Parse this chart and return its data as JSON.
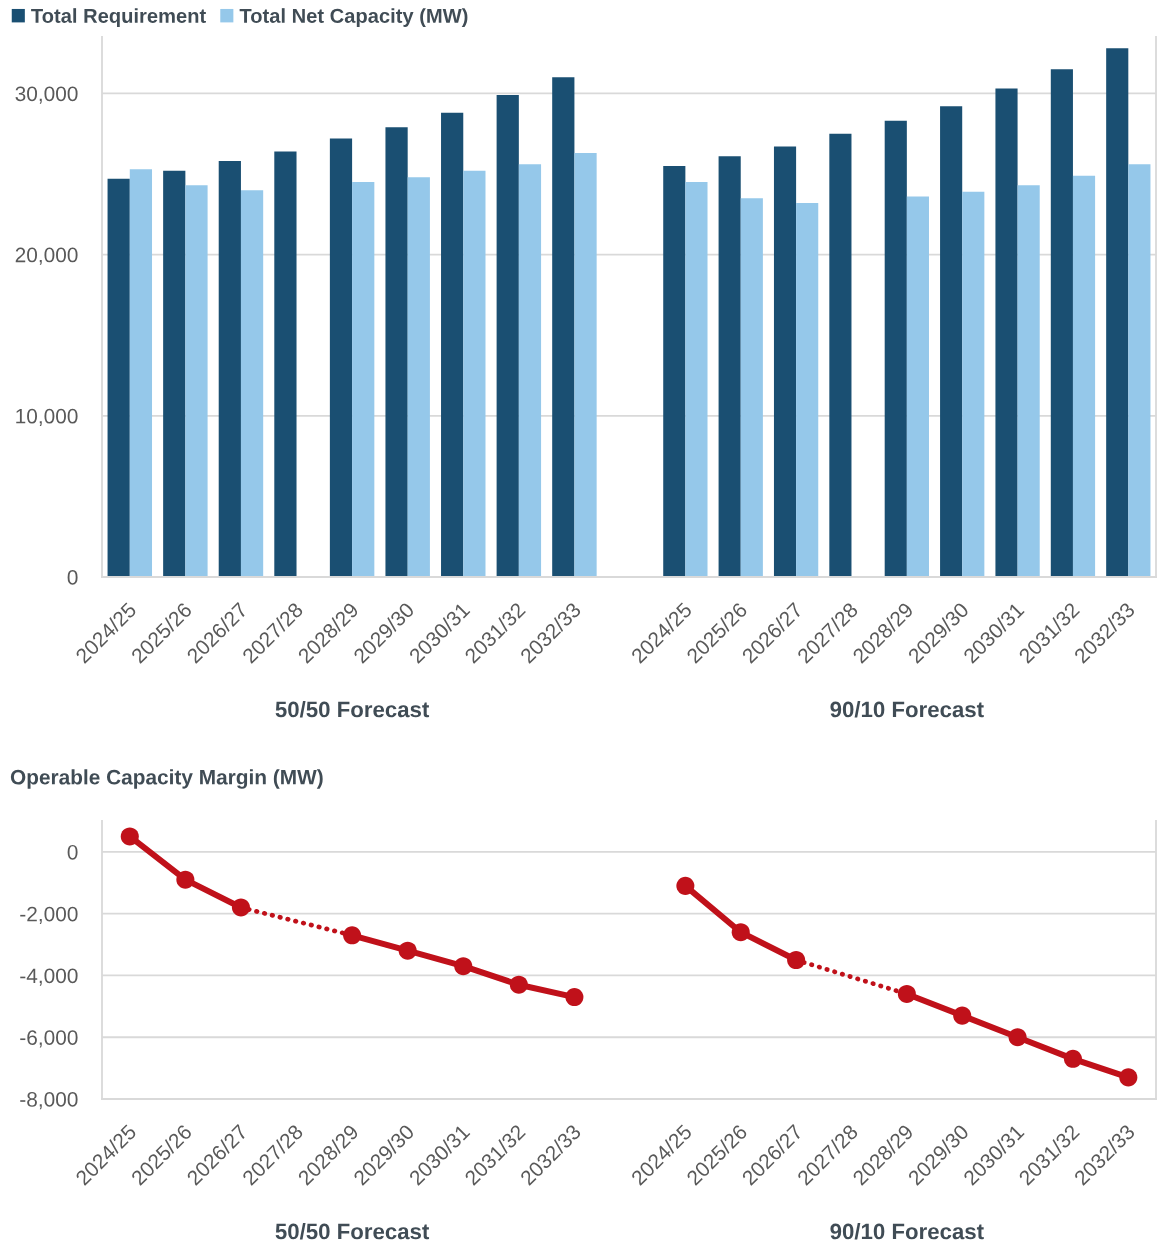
{
  "chart_data": [
    {
      "type": "bar",
      "categories": [
        "2024/25",
        "2025/26",
        "2026/27",
        "2027/28",
        "2028/29",
        "2029/30",
        "2030/31",
        "2031/32",
        "2032/33"
      ],
      "series": [
        {
          "name": "Total Requirement",
          "color": "#1a4f72",
          "values": [
            24700,
            25200,
            25800,
            26400,
            27200,
            27900,
            28800,
            29900,
            31000
          ]
        },
        {
          "name": "Total Net Capacity (MW)",
          "color": "#95c8ea",
          "values": [
            25300,
            24300,
            24000,
            null,
            24500,
            24800,
            25200,
            25600,
            26300
          ]
        }
      ],
      "ylim": [
        0,
        33500
      ],
      "yticks": [
        0,
        {
          "value": 10000,
          "label": "10,000"
        },
        {
          "value": 20000,
          "label": "20,000"
        },
        {
          "value": 30000,
          "label": "30,000"
        }
      ],
      "grid": "y",
      "legend": "top left",
      "xlabel": "50/50 Forecast"
    },
    {
      "type": "bar",
      "categories": [
        "2024/25",
        "2025/26",
        "2026/27",
        "2027/28",
        "2028/29",
        "2029/30",
        "2030/31",
        "2031/32",
        "2032/33"
      ],
      "series": [
        {
          "color": "#1a4f72",
          "values": [
            25500,
            26100,
            26700,
            27500,
            28300,
            29200,
            30300,
            31500,
            32800
          ]
        },
        {
          "color": "#95c8ea",
          "values": [
            24500,
            23500,
            23200,
            null,
            23600,
            23900,
            24300,
            24900,
            25600
          ]
        }
      ],
      "ylim": [
        0,
        33500
      ],
      "yticks": [
        0,
        {
          "value": 10000,
          "label": null
        },
        {
          "value": 20000,
          "label": null
        },
        {
          "value": 30000,
          "label": null
        }
      ],
      "grid": "y",
      "tick_labels": "x",
      "xlabel": "90/10 Forecast"
    },
    {
      "type": "line",
      "title": "Operable Capacity Margin (MW)",
      "categories": [
        "2024/25",
        "2025/26",
        "2026/27",
        "2027/28",
        "2028/29",
        "2029/30",
        "2030/31",
        "2031/32",
        "2032/33"
      ],
      "series": [
        {
          "color": "#c0111a",
          "values": [
            500,
            -900,
            -1800,
            null,
            null,
            null,
            null,
            null,
            null
          ]
        },
        {
          "color": "#c0111a",
          "values": [
            null,
            null,
            -1800,
            null,
            -2700,
            null,
            null,
            null,
            null
          ],
          "line_style": "dotted",
          "marker": "none"
        },
        {
          "color": "#c0111a",
          "values": [
            null,
            null,
            null,
            null,
            -2700,
            -3200,
            -3700,
            -4300,
            -4700
          ]
        }
      ],
      "ylim": [
        -8000,
        1000
      ],
      "yticks": [
        {
          "value": -8000,
          "label": "-8,000"
        },
        {
          "value": -6000,
          "label": "-6,000"
        },
        {
          "value": -4000,
          "label": "-4,000"
        },
        {
          "value": -2000,
          "label": "-2,000"
        },
        0
      ],
      "grid": "y",
      "marker": "circle",
      "line_style": "solid",
      "xlabel": "50/50 Forecast"
    },
    {
      "type": "line",
      "categories": [
        "2024/25",
        "2025/26",
        "2026/27",
        "2027/28",
        "2028/29",
        "2029/30",
        "2030/31",
        "2031/32",
        "2032/33"
      ],
      "series": [
        {
          "color": "#c0111a",
          "values": [
            -1100,
            -2600,
            -3500,
            null,
            null,
            null,
            null,
            null,
            null
          ]
        },
        {
          "color": "#c0111a",
          "values": [
            null,
            null,
            -3500,
            null,
            -4600,
            null,
            null,
            null,
            null
          ],
          "line_style": "dotted",
          "marker": "none"
        },
        {
          "color": "#c0111a",
          "values": [
            null,
            null,
            null,
            null,
            -4600,
            -5300,
            -6000,
            -6700,
            -7300
          ]
        }
      ],
      "ylim": [
        -8000,
        1000
      ],
      "yticks": [
        {
          "value": -8000,
          "label": null
        },
        {
          "value": -6000,
          "label": null
        },
        {
          "value": -4000,
          "label": null
        },
        {
          "value": -2000,
          "label": null
        },
        0
      ],
      "grid": "y",
      "tick_labels": "x",
      "marker": "circle",
      "line_style": "solid",
      "xlabel": "90/10 Forecast"
    }
  ]
}
